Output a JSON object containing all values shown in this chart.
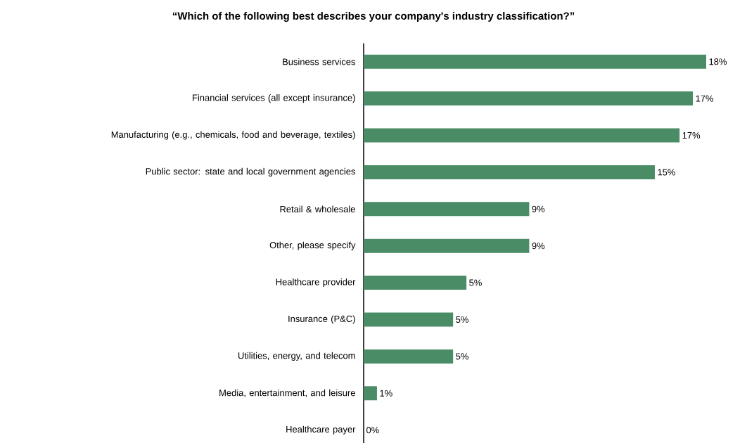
{
  "chart_data": {
    "type": "bar",
    "orientation": "horizontal",
    "title": "“Which of the following best describes your company's industry classification?”",
    "categories": [
      "Business services",
      "Financial services (all except insurance)",
      "Manufacturing (e.g., chemicals, food and beverage, textiles)",
      "Public sector: state and local government agencies",
      "Retail & wholesale",
      "Other, please specify",
      "Healthcare provider",
      "Insurance (P&C)",
      "Utilities, energy, and telecom",
      "Media, entertainment, and leisure",
      "Healthcare payer"
    ],
    "values": [
      18.0,
      17.3,
      16.6,
      15.3,
      8.7,
      8.7,
      5.4,
      4.7,
      4.7,
      0.7,
      0
    ],
    "value_labels": [
      "18%",
      "17%",
      "17%",
      "15%",
      "9%",
      "9%",
      "5%",
      "5%",
      "5%",
      "1%",
      "0%"
    ],
    "color": "#4a8c66"
  }
}
